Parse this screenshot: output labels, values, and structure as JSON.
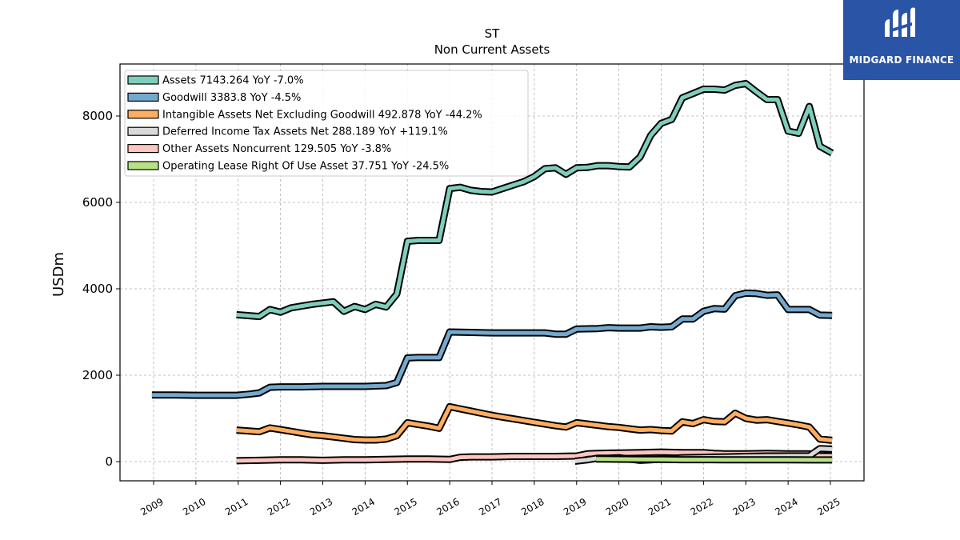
{
  "chart_data": {
    "type": "line",
    "title": "ST",
    "subtitle": "Non Current  Assets",
    "ylabel": "USDm",
    "xlabel": "",
    "ylim": [
      -450,
      9200
    ],
    "xlim": [
      2008.25,
      2025.75
    ],
    "yticks": [
      0,
      2000,
      4000,
      6000,
      8000
    ],
    "xticks": [
      "2009",
      "2010",
      "2011",
      "2012",
      "2013",
      "2014",
      "2015",
      "2016",
      "2017",
      "2018",
      "2019",
      "2020",
      "2021",
      "2022",
      "2023",
      "2024",
      "2025"
    ],
    "grid": true,
    "legend_position": "top-left",
    "series": [
      {
        "name": "Assets  7143.264 YoY -7.0%",
        "color": "#7fcdbb",
        "points": [
          [
            2010.96,
            3400
          ],
          [
            2011.5,
            3360
          ],
          [
            2011.75,
            3520
          ],
          [
            2012.0,
            3460
          ],
          [
            2012.25,
            3560
          ],
          [
            2012.5,
            3600
          ],
          [
            2012.75,
            3640
          ],
          [
            2013.0,
            3670
          ],
          [
            2013.25,
            3700
          ],
          [
            2013.5,
            3480
          ],
          [
            2013.75,
            3590
          ],
          [
            2014.0,
            3520
          ],
          [
            2014.25,
            3640
          ],
          [
            2014.5,
            3580
          ],
          [
            2014.75,
            3880
          ],
          [
            2015.0,
            5100
          ],
          [
            2015.25,
            5120
          ],
          [
            2015.5,
            5120
          ],
          [
            2015.75,
            5120
          ],
          [
            2016.0,
            6320
          ],
          [
            2016.25,
            6350
          ],
          [
            2016.5,
            6280
          ],
          [
            2016.75,
            6250
          ],
          [
            2017.0,
            6240
          ],
          [
            2017.25,
            6320
          ],
          [
            2017.5,
            6400
          ],
          [
            2017.75,
            6480
          ],
          [
            2018.0,
            6600
          ],
          [
            2018.25,
            6780
          ],
          [
            2018.5,
            6800
          ],
          [
            2018.75,
            6650
          ],
          [
            2019.0,
            6800
          ],
          [
            2019.25,
            6810
          ],
          [
            2019.5,
            6850
          ],
          [
            2019.75,
            6850
          ],
          [
            2020.0,
            6830
          ],
          [
            2020.25,
            6820
          ],
          [
            2020.5,
            7050
          ],
          [
            2020.75,
            7550
          ],
          [
            2021.0,
            7830
          ],
          [
            2021.25,
            7920
          ],
          [
            2021.5,
            8420
          ],
          [
            2021.75,
            8520
          ],
          [
            2022.0,
            8620
          ],
          [
            2022.25,
            8620
          ],
          [
            2022.5,
            8600
          ],
          [
            2022.75,
            8710
          ],
          [
            2023.0,
            8750
          ],
          [
            2023.25,
            8560
          ],
          [
            2023.5,
            8380
          ],
          [
            2023.75,
            8380
          ],
          [
            2024.0,
            7650
          ],
          [
            2024.25,
            7600
          ],
          [
            2024.5,
            8220
          ],
          [
            2024.75,
            7300
          ],
          [
            2025.04,
            7143
          ]
        ]
      },
      {
        "name": "Goodwill  3383.8 YoY -4.5%",
        "color": "#74a9cf",
        "points": [
          [
            2008.96,
            1540
          ],
          [
            2009.5,
            1540
          ],
          [
            2010.0,
            1535
          ],
          [
            2010.5,
            1535
          ],
          [
            2010.96,
            1535
          ],
          [
            2011.25,
            1560
          ],
          [
            2011.5,
            1590
          ],
          [
            2011.75,
            1720
          ],
          [
            2012.0,
            1730
          ],
          [
            2012.5,
            1730
          ],
          [
            2013.0,
            1740
          ],
          [
            2013.5,
            1740
          ],
          [
            2014.0,
            1740
          ],
          [
            2014.25,
            1750
          ],
          [
            2014.5,
            1760
          ],
          [
            2014.75,
            1830
          ],
          [
            2015.0,
            2400
          ],
          [
            2015.25,
            2410
          ],
          [
            2015.5,
            2410
          ],
          [
            2015.75,
            2410
          ],
          [
            2016.0,
            3000
          ],
          [
            2016.5,
            2990
          ],
          [
            2017.0,
            2980
          ],
          [
            2017.5,
            2980
          ],
          [
            2018.0,
            2980
          ],
          [
            2018.25,
            2980
          ],
          [
            2018.5,
            2950
          ],
          [
            2018.75,
            2950
          ],
          [
            2019.0,
            3070
          ],
          [
            2019.5,
            3080
          ],
          [
            2019.75,
            3100
          ],
          [
            2020.0,
            3090
          ],
          [
            2020.5,
            3090
          ],
          [
            2020.75,
            3120
          ],
          [
            2021.0,
            3110
          ],
          [
            2021.25,
            3120
          ],
          [
            2021.5,
            3300
          ],
          [
            2021.75,
            3300
          ],
          [
            2022.0,
            3480
          ],
          [
            2022.25,
            3540
          ],
          [
            2022.5,
            3530
          ],
          [
            2022.75,
            3840
          ],
          [
            2023.0,
            3900
          ],
          [
            2023.25,
            3890
          ],
          [
            2023.5,
            3850
          ],
          [
            2023.75,
            3860
          ],
          [
            2024.0,
            3520
          ],
          [
            2024.25,
            3520
          ],
          [
            2024.5,
            3520
          ],
          [
            2024.75,
            3390
          ],
          [
            2025.04,
            3384
          ]
        ]
      },
      {
        "name": "Intangible Assets Net Excluding Goodwill  492.878 YoY -44.2%",
        "color": "#fdae61",
        "points": [
          [
            2010.96,
            730
          ],
          [
            2011.25,
            710
          ],
          [
            2011.5,
            690
          ],
          [
            2011.75,
            780
          ],
          [
            2012.0,
            740
          ],
          [
            2012.25,
            700
          ],
          [
            2012.5,
            660
          ],
          [
            2012.75,
            620
          ],
          [
            2013.0,
            600
          ],
          [
            2013.25,
            570
          ],
          [
            2013.5,
            540
          ],
          [
            2013.75,
            510
          ],
          [
            2014.0,
            500
          ],
          [
            2014.25,
            500
          ],
          [
            2014.5,
            520
          ],
          [
            2014.75,
            600
          ],
          [
            2015.0,
            900
          ],
          [
            2015.25,
            860
          ],
          [
            2015.5,
            820
          ],
          [
            2015.75,
            770
          ],
          [
            2016.0,
            1270
          ],
          [
            2016.25,
            1220
          ],
          [
            2016.5,
            1170
          ],
          [
            2016.75,
            1120
          ],
          [
            2017.0,
            1070
          ],
          [
            2017.25,
            1030
          ],
          [
            2017.5,
            990
          ],
          [
            2017.75,
            950
          ],
          [
            2018.0,
            910
          ],
          [
            2018.25,
            870
          ],
          [
            2018.5,
            830
          ],
          [
            2018.75,
            800
          ],
          [
            2019.0,
            900
          ],
          [
            2019.25,
            870
          ],
          [
            2019.5,
            840
          ],
          [
            2019.75,
            810
          ],
          [
            2020.0,
            790
          ],
          [
            2020.25,
            760
          ],
          [
            2020.5,
            730
          ],
          [
            2020.75,
            740
          ],
          [
            2021.0,
            720
          ],
          [
            2021.25,
            710
          ],
          [
            2021.5,
            920
          ],
          [
            2021.75,
            880
          ],
          [
            2022.0,
            970
          ],
          [
            2022.25,
            930
          ],
          [
            2022.5,
            920
          ],
          [
            2022.75,
            1120
          ],
          [
            2023.0,
            1000
          ],
          [
            2023.25,
            960
          ],
          [
            2023.5,
            970
          ],
          [
            2023.75,
            930
          ],
          [
            2024.0,
            890
          ],
          [
            2024.25,
            850
          ],
          [
            2024.5,
            800
          ],
          [
            2024.75,
            520
          ],
          [
            2025.04,
            493
          ]
        ]
      },
      {
        "name": "Deferred Income Tax Assets Net  288.189 YoY +119.1%",
        "color": "#d9d9d9",
        "points": [
          [
            2018.96,
            10
          ],
          [
            2019.25,
            40
          ],
          [
            2019.5,
            80
          ],
          [
            2019.75,
            80
          ],
          [
            2020.0,
            90
          ],
          [
            2020.25,
            60
          ],
          [
            2020.5,
            30
          ],
          [
            2020.75,
            40
          ],
          [
            2021.0,
            60
          ],
          [
            2021.5,
            90
          ],
          [
            2022.0,
            100
          ],
          [
            2022.5,
            110
          ],
          [
            2023.0,
            120
          ],
          [
            2023.5,
            130
          ],
          [
            2023.75,
            130
          ],
          [
            2024.0,
            132
          ],
          [
            2024.25,
            132
          ],
          [
            2024.5,
            132
          ],
          [
            2024.75,
            300
          ],
          [
            2025.04,
            288
          ]
        ]
      },
      {
        "name": "Other Assets Noncurrent  129.505 YoY -3.8%",
        "color": "#fcc5c0",
        "points": [
          [
            2010.96,
            20
          ],
          [
            2011.5,
            30
          ],
          [
            2012.0,
            40
          ],
          [
            2012.5,
            40
          ],
          [
            2013.0,
            30
          ],
          [
            2013.5,
            40
          ],
          [
            2014.0,
            40
          ],
          [
            2014.5,
            50
          ],
          [
            2015.0,
            60
          ],
          [
            2015.5,
            60
          ],
          [
            2016.0,
            50
          ],
          [
            2016.25,
            100
          ],
          [
            2016.5,
            110
          ],
          [
            2017.0,
            110
          ],
          [
            2017.5,
            120
          ],
          [
            2018.0,
            120
          ],
          [
            2018.5,
            120
          ],
          [
            2019.0,
            130
          ],
          [
            2019.25,
            180
          ],
          [
            2019.5,
            190
          ],
          [
            2020.0,
            200
          ],
          [
            2020.5,
            210
          ],
          [
            2021.0,
            220
          ],
          [
            2021.5,
            210
          ],
          [
            2022.0,
            210
          ],
          [
            2022.25,
            190
          ],
          [
            2022.5,
            180
          ],
          [
            2023.0,
            180
          ],
          [
            2023.5,
            190
          ],
          [
            2024.0,
            180
          ],
          [
            2024.25,
            180
          ],
          [
            2024.5,
            180
          ],
          [
            2024.75,
            130
          ],
          [
            2025.04,
            130
          ]
        ]
      },
      {
        "name": "Operating Lease Right Of Use Asset  37.751 YoY -24.5%",
        "color": "#b8e186",
        "points": [
          [
            2019.46,
            60
          ],
          [
            2020.0,
            55
          ],
          [
            2020.5,
            50
          ],
          [
            2021.0,
            50
          ],
          [
            2021.5,
            45
          ],
          [
            2022.0,
            45
          ],
          [
            2022.5,
            42
          ],
          [
            2023.0,
            42
          ],
          [
            2023.5,
            40
          ],
          [
            2024.0,
            40
          ],
          [
            2024.5,
            38
          ],
          [
            2025.04,
            38
          ]
        ]
      }
    ]
  },
  "logo": {
    "text": "MIDGARD FINANCE",
    "color": "#2a55a6",
    "icon": "midgard-logo-icon"
  }
}
